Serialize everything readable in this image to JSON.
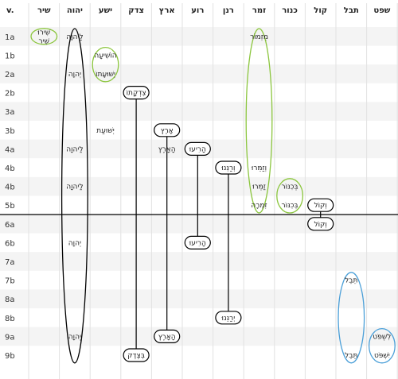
{
  "header": {
    "row_label": "v.",
    "columns": [
      "שיר",
      "יהוה",
      "ישע",
      "צדק",
      "ארץ",
      "רוע",
      "רנן",
      "זמר",
      "כנור",
      "קול",
      "תבל",
      "שפט"
    ]
  },
  "rows": [
    "1a",
    "1b",
    "2a",
    "2b",
    "3a",
    "3b",
    "4a",
    "4b",
    "4b",
    "5b",
    "6a",
    "6b",
    "7a",
    "7b",
    "8a",
    "8b",
    "9a",
    "9b"
  ],
  "cells": [
    {
      "col": 0,
      "row": 0,
      "lines": [
        "שִׁירוּ",
        "שִׁיר"
      ]
    },
    {
      "col": 1,
      "row": 0,
      "lines": [
        "לַיהוָה"
      ]
    },
    {
      "col": 7,
      "row": 0,
      "lines": [
        "מִזְמוֹר"
      ]
    },
    {
      "col": 2,
      "row": 1,
      "lines": [
        "הוֹשִׁיעָה"
      ]
    },
    {
      "col": 1,
      "row": 2,
      "lines": [
        "יְהוָה"
      ]
    },
    {
      "col": 2,
      "row": 2,
      "lines": [
        "יְשׁוּעָתוֹ"
      ]
    },
    {
      "col": 3,
      "row": 3,
      "lines": [
        "צִדְקָתוֹ"
      ]
    },
    {
      "col": 2,
      "row": 5,
      "lines": [
        "יְשׁוּעַת"
      ]
    },
    {
      "col": 4,
      "row": 5,
      "lines": [
        "אָרֶץ"
      ]
    },
    {
      "col": 1,
      "row": 6,
      "lines": [
        "לַיהוָה"
      ]
    },
    {
      "col": 4,
      "row": 6,
      "lines": [
        "הָאָרֶץ"
      ]
    },
    {
      "col": 5,
      "row": 6,
      "lines": [
        "הָרִיעוּ"
      ]
    },
    {
      "col": 6,
      "row": 7,
      "lines": [
        "וְרַנְּנוּ"
      ]
    },
    {
      "col": 7,
      "row": 7,
      "lines": [
        "וְזַמֵּרוּ"
      ]
    },
    {
      "col": 1,
      "row": 8,
      "lines": [
        "לַיהוָה"
      ]
    },
    {
      "col": 7,
      "row": 8,
      "lines": [
        "זַמְּרוּ"
      ]
    },
    {
      "col": 8,
      "row": 8,
      "lines": [
        "בְּכִנּוֹר"
      ]
    },
    {
      "col": 7,
      "row": 9,
      "lines": [
        "זִמְרָה"
      ]
    },
    {
      "col": 8,
      "row": 9,
      "lines": [
        "בְּכִנּוֹר"
      ]
    },
    {
      "col": 9,
      "row": 9,
      "lines": [
        "וְקוֹל"
      ]
    },
    {
      "col": 9,
      "row": 10,
      "lines": [
        "וְקוֹל"
      ]
    },
    {
      "col": 1,
      "row": 11,
      "lines": [
        "יְהוָה"
      ]
    },
    {
      "col": 5,
      "row": 11,
      "lines": [
        "הָרִיעוּ"
      ]
    },
    {
      "col": 10,
      "row": 13,
      "lines": [
        "תֵּבֵל"
      ]
    },
    {
      "col": 6,
      "row": 15,
      "lines": [
        "יְרַנֵּנוּ"
      ]
    },
    {
      "col": 1,
      "row": 16,
      "lines": [
        "יְהוָה"
      ]
    },
    {
      "col": 4,
      "row": 16,
      "lines": [
        "הָאָרֶץ"
      ]
    },
    {
      "col": 11,
      "row": 16,
      "lines": [
        "לִשְׁפֹּט"
      ]
    },
    {
      "col": 3,
      "row": 17,
      "lines": [
        "בְּצֶדֶק"
      ]
    },
    {
      "col": 10,
      "row": 17,
      "lines": [
        "תֵּבֵל"
      ]
    },
    {
      "col": 11,
      "row": 17,
      "lines": [
        "יִשְׁפֹּט"
      ]
    }
  ],
  "ellipses": [
    {
      "col": 0,
      "from": 0,
      "to": 0,
      "color": "#8cc63f"
    },
    {
      "col": 1,
      "from": 0,
      "to": 17,
      "color": "#000000"
    },
    {
      "col": 2,
      "from": 1,
      "to": 2,
      "color": "#8cc63f"
    },
    {
      "col": 7,
      "from": 0,
      "to": 9,
      "color": "#8cc63f"
    },
    {
      "col": 8,
      "from": 8,
      "to": 9,
      "color": "#8cc63f"
    },
    {
      "col": 10,
      "from": 13,
      "to": 17,
      "color": "#4a9fd8"
    },
    {
      "col": 11,
      "from": 16,
      "to": 17,
      "color": "#4a9fd8"
    }
  ],
  "links": [
    {
      "col": 3,
      "from": 3,
      "to": 17,
      "color": "#000000"
    },
    {
      "col": 4,
      "from": 5,
      "to": 16,
      "color": "#000000"
    },
    {
      "col": 5,
      "from": 6,
      "to": 11,
      "color": "#000000"
    },
    {
      "col": 6,
      "from": 7,
      "to": 15,
      "color": "#000000"
    },
    {
      "col": 9,
      "from": 9,
      "to": 10,
      "color": "#000000"
    }
  ],
  "divider_after_row": 9
}
